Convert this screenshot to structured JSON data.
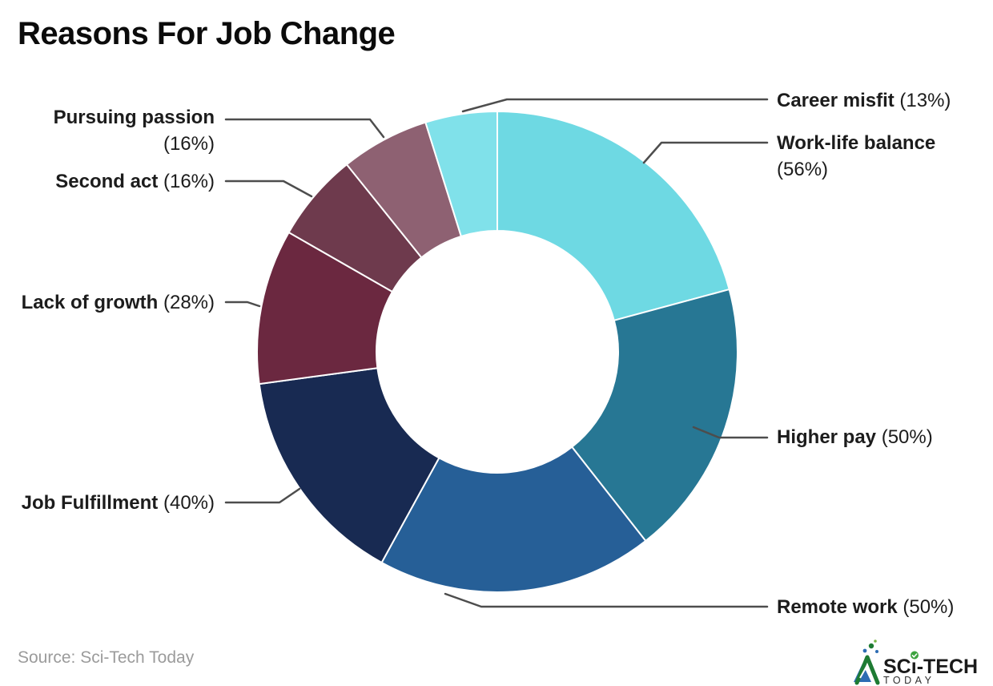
{
  "title": "Reasons For Job Change",
  "source_note": "Source: Sci-Tech Today",
  "logo": {
    "primary_sc": "SC",
    "primary_i": "ı",
    "primary_tech": "-TECH",
    "secondary": "TODAY",
    "accent_green": "#1e7b33",
    "accent_blue": "#2d6cb3"
  },
  "chart_data": {
    "type": "pie",
    "subtype": "donut",
    "title": "Reasons For Job Change",
    "unit": "%",
    "start_angle_deg": 0,
    "direction": "clockwise",
    "legend": "none",
    "leader_line_color": "#4d4d4d",
    "label_format": "Name (value%)",
    "slices": [
      {
        "label": "Work-life balance",
        "value": 56,
        "color": "#6ED9E3"
      },
      {
        "label": "Higher pay",
        "value": 50,
        "color": "#277794"
      },
      {
        "label": "Remote work",
        "value": 50,
        "color": "#265F97"
      },
      {
        "label": "Job Fulfillment",
        "value": 40,
        "color": "#182A52"
      },
      {
        "label": "Lack of growth",
        "value": 28,
        "color": "#6B2840"
      },
      {
        "label": "Second act",
        "value": 16,
        "color": "#6E3A4D"
      },
      {
        "label": "Pursuing passion",
        "value": 16,
        "color": "#8E6172"
      },
      {
        "label": "Career misfit",
        "value": 13,
        "color": "#80E1EA"
      }
    ]
  }
}
